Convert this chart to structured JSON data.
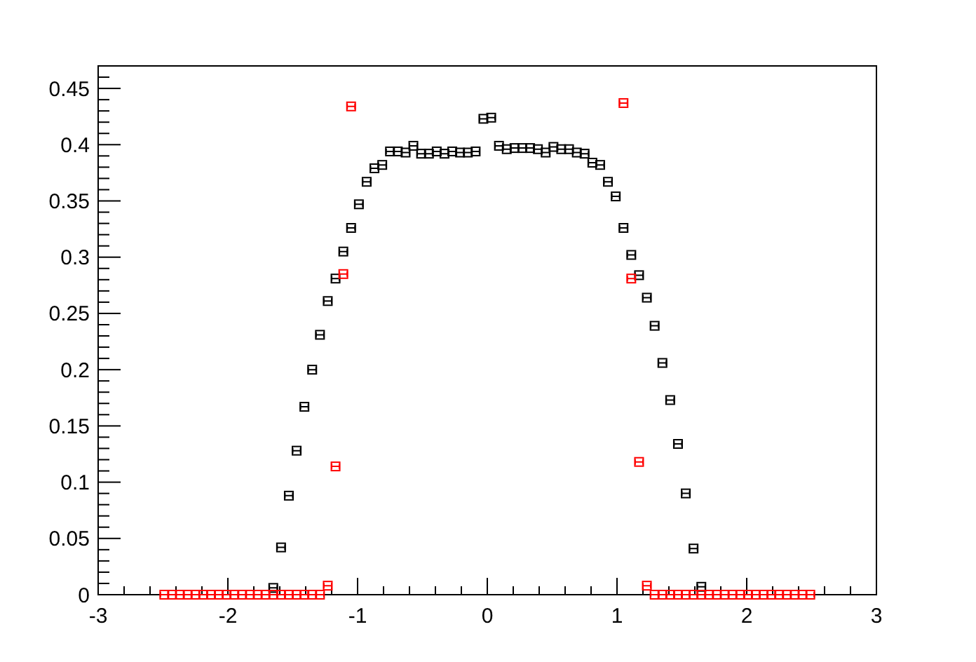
{
  "chart_data": {
    "type": "scatter",
    "marker": "square",
    "grid": false,
    "xlim": [
      -3,
      3
    ],
    "ylim": [
      0,
      0.47
    ],
    "xticks": [
      -3,
      {
        "value": -2.8,
        "label": null
      },
      {
        "value": -2.6,
        "label": null
      },
      {
        "value": -2.4,
        "label": null
      },
      {
        "value": -2.2,
        "label": null
      },
      -2,
      {
        "value": -1.8,
        "label": null
      },
      {
        "value": -1.6,
        "label": null
      },
      {
        "value": -1.4,
        "label": null
      },
      {
        "value": -1.2,
        "label": null
      },
      -1,
      {
        "value": -0.8,
        "label": null
      },
      {
        "value": -0.6,
        "label": null
      },
      {
        "value": -0.4,
        "label": null
      },
      {
        "value": -0.2,
        "label": null
      },
      0,
      {
        "value": 0.2,
        "label": null
      },
      {
        "value": 0.4,
        "label": null
      },
      {
        "value": 0.6,
        "label": null
      },
      {
        "value": 0.8,
        "label": null
      },
      1,
      {
        "value": 1.2,
        "label": null
      },
      {
        "value": 1.4,
        "label": null
      },
      {
        "value": 1.6,
        "label": null
      },
      {
        "value": 1.8,
        "label": null
      },
      2,
      {
        "value": 2.2,
        "label": null
      },
      {
        "value": 2.4,
        "label": null
      },
      {
        "value": 2.6,
        "label": null
      },
      {
        "value": 2.8,
        "label": null
      },
      3
    ],
    "yticks": [
      0,
      {
        "value": 0.01,
        "label": null
      },
      {
        "value": 0.02,
        "label": null
      },
      {
        "value": 0.03,
        "label": null
      },
      {
        "value": 0.04,
        "label": null
      },
      0.05,
      {
        "value": 0.06,
        "label": null
      },
      {
        "value": 0.07,
        "label": null
      },
      {
        "value": 0.08,
        "label": null
      },
      {
        "value": 0.09,
        "label": null
      },
      0.1,
      {
        "value": 0.11,
        "label": null
      },
      {
        "value": 0.12,
        "label": null
      },
      {
        "value": 0.13,
        "label": null
      },
      {
        "value": 0.14,
        "label": null
      },
      0.15,
      {
        "value": 0.16,
        "label": null
      },
      {
        "value": 0.17,
        "label": null
      },
      {
        "value": 0.18,
        "label": null
      },
      {
        "value": 0.19,
        "label": null
      },
      0.2,
      {
        "value": 0.21,
        "label": null
      },
      {
        "value": 0.22,
        "label": null
      },
      {
        "value": 0.23,
        "label": null
      },
      {
        "value": 0.24,
        "label": null
      },
      0.25,
      {
        "value": 0.26,
        "label": null
      },
      {
        "value": 0.27,
        "label": null
      },
      {
        "value": 0.28,
        "label": null
      },
      {
        "value": 0.29,
        "label": null
      },
      0.3,
      {
        "value": 0.31,
        "label": null
      },
      {
        "value": 0.32,
        "label": null
      },
      {
        "value": 0.33,
        "label": null
      },
      {
        "value": 0.34,
        "label": null
      },
      0.35,
      {
        "value": 0.36,
        "label": null
      },
      {
        "value": 0.37,
        "label": null
      },
      {
        "value": 0.38,
        "label": null
      },
      {
        "value": 0.39,
        "label": null
      },
      0.4,
      {
        "value": 0.41,
        "label": null
      },
      {
        "value": 0.42,
        "label": null
      },
      {
        "value": 0.43,
        "label": null
      },
      {
        "value": 0.44,
        "label": null
      },
      0.45,
      {
        "value": 0.46,
        "label": null
      }
    ],
    "series": [
      {
        "color": "#000000",
        "x": [
          -1.65,
          -1.59,
          -1.53,
          -1.47,
          -1.41,
          -1.35,
          -1.29,
          -1.23,
          -1.17,
          -1.11,
          -1.05,
          -0.99,
          -0.93,
          -0.87,
          -0.81,
          -0.75,
          -0.69,
          -0.63,
          -0.57,
          -0.51,
          -0.45,
          -0.39,
          -0.33,
          -0.27,
          -0.21,
          -0.15,
          -0.09,
          -0.03,
          0.03,
          0.09,
          0.15,
          0.21,
          0.27,
          0.33,
          0.39,
          0.45,
          0.51,
          0.57,
          0.63,
          0.69,
          0.75,
          0.81,
          0.87,
          0.93,
          0.99,
          1.05,
          1.11,
          1.17,
          1.23,
          1.29,
          1.35,
          1.41,
          1.47,
          1.53,
          1.59,
          1.65
        ],
        "values": [
          0.006,
          0.042,
          0.088,
          0.128,
          0.167,
          0.2,
          0.231,
          0.261,
          0.281,
          0.305,
          0.326,
          0.347,
          0.367,
          0.379,
          0.382,
          0.394,
          0.394,
          0.393,
          0.399,
          0.392,
          0.392,
          0.394,
          0.392,
          0.394,
          0.393,
          0.393,
          0.394,
          0.423,
          0.424,
          0.399,
          0.396,
          0.397,
          0.397,
          0.397,
          0.396,
          0.393,
          0.398,
          0.396,
          0.396,
          0.393,
          0.392,
          0.384,
          0.382,
          0.367,
          0.354,
          0.326,
          0.302,
          0.284,
          0.264,
          0.239,
          0.206,
          0.173,
          0.134,
          0.09,
          0.041,
          0.007
        ],
        "xerrors": [
          0.03,
          0.03,
          0.03,
          0.03,
          0.03,
          0.03,
          0.03,
          0.03,
          0.03,
          0.03,
          0.03,
          0.03,
          0.03,
          0.03,
          0.03,
          0.03,
          0.03,
          0.03,
          0.03,
          0.03,
          0.03,
          0.03,
          0.03,
          0.03,
          0.03,
          0.03,
          0.03,
          0.03,
          0.03,
          0.03,
          0.03,
          0.03,
          0.03,
          0.03,
          0.03,
          0.03,
          0.03,
          0.03,
          0.03,
          0.03,
          0.03,
          0.03,
          0.03,
          0.03,
          0.03,
          0.03,
          0.03,
          0.03,
          0.03,
          0.03,
          0.03,
          0.03,
          0.03,
          0.03,
          0.03,
          0.03
        ]
      },
      {
        "color": "#ff0000",
        "x": [
          -2.49,
          -2.43,
          -2.37,
          -2.31,
          -2.25,
          -2.19,
          -2.13,
          -2.07,
          -2.01,
          -1.95,
          -1.89,
          -1.83,
          -1.77,
          -1.71,
          -1.65,
          -1.59,
          -1.53,
          -1.47,
          -1.41,
          -1.35,
          -1.29,
          -1.23,
          -1.17,
          -1.11,
          -1.05,
          1.05,
          1.11,
          1.17,
          1.23,
          1.29,
          1.35,
          1.41,
          1.47,
          1.53,
          1.59,
          1.65,
          1.71,
          1.77,
          1.83,
          1.89,
          1.95,
          2.01,
          2.07,
          2.13,
          2.19,
          2.25,
          2.31,
          2.37,
          2.43,
          2.49
        ],
        "values": [
          0,
          0,
          0,
          0,
          0,
          0,
          0,
          0,
          0,
          0,
          0,
          0,
          0,
          0,
          0,
          0,
          0,
          0,
          0,
          0,
          0,
          0.008,
          0.114,
          0.285,
          0.434,
          0.437,
          0.281,
          0.118,
          0.008,
          0,
          0,
          0,
          0,
          0,
          0,
          0,
          0,
          0,
          0,
          0,
          0,
          0,
          0,
          0,
          0,
          0,
          0,
          0,
          0,
          0
        ],
        "xerrors": [
          0.03,
          0.03,
          0.03,
          0.03,
          0.03,
          0.03,
          0.03,
          0.03,
          0.03,
          0.03,
          0.03,
          0.03,
          0.03,
          0.03,
          0.03,
          0.03,
          0.03,
          0.03,
          0.03,
          0.03,
          0.03,
          0.03,
          0.03,
          0.03,
          0.03,
          0.03,
          0.03,
          0.03,
          0.03,
          0.03,
          0.03,
          0.03,
          0.03,
          0.03,
          0.03,
          0.03,
          0.03,
          0.03,
          0.03,
          0.03,
          0.03,
          0.03,
          0.03,
          0.03,
          0.03,
          0.03,
          0.03,
          0.03,
          0.03,
          0.03
        ]
      }
    ]
  }
}
